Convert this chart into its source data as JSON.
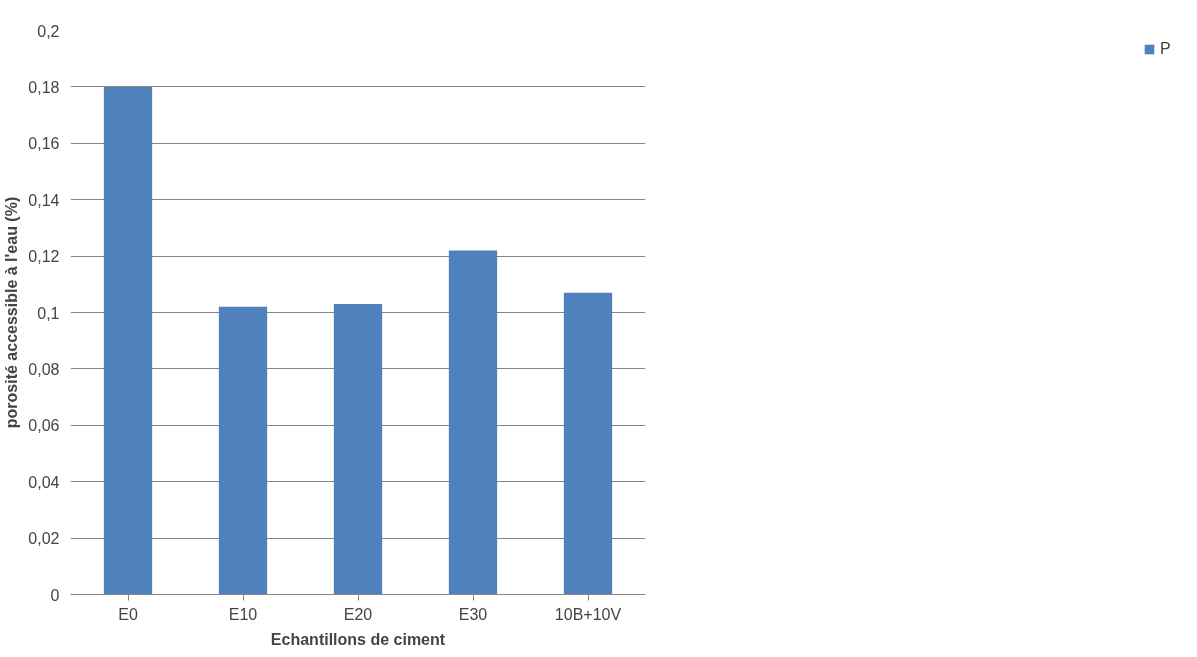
{
  "chart_data": {
    "type": "bar",
    "xlabel": "Echantillons de ciment",
    "ylabel": "porosité accessible à l'eau (%)",
    "categories": [
      "E0",
      "E10",
      "E20",
      "E30",
      "10B+10V"
    ],
    "series": [
      {
        "name": "P",
        "color": "#4f81bd",
        "values": [
          0.18,
          0.102,
          0.103,
          0.122,
          0.107
        ]
      }
    ],
    "ylim": [
      0,
      0.2
    ],
    "yticks": [
      0,
      {
        "value": 0.02,
        "label": "0,02"
      },
      {
        "value": 0.04,
        "label": "0,04"
      },
      {
        "value": 0.06,
        "label": "0,06"
      },
      {
        "value": 0.08,
        "label": "0,08"
      },
      {
        "value": 0.1,
        "label": "0,1"
      },
      {
        "value": 0.12,
        "label": "0,12"
      },
      {
        "value": 0.14,
        "label": "0,14"
      },
      {
        "value": 0.16,
        "label": "0,16"
      },
      {
        "value": 0.18,
        "label": "0,18"
      },
      {
        "value": 0.2,
        "label": "0,2"
      }
    ],
    "grid": "y",
    "legend": "right"
  }
}
